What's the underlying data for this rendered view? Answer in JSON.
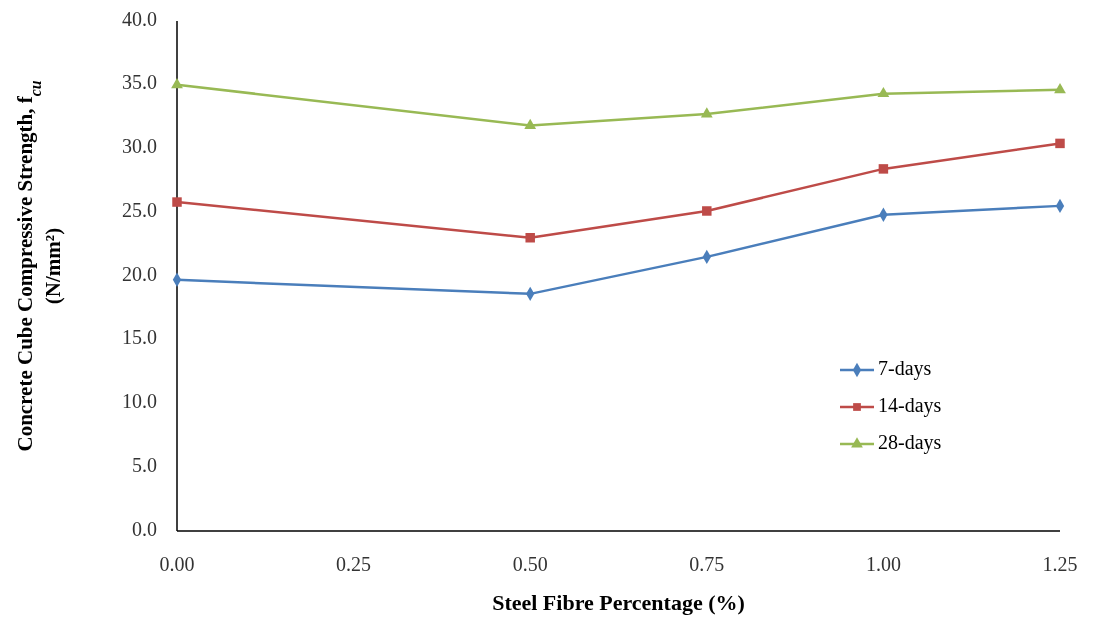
{
  "chart_data": {
    "type": "line",
    "xlabel": "Steel Fibre Percentage (%)",
    "ylabel": "Concrete Cube Compressive Strength, f$_{cu}$\n(N/mm²)",
    "x": [
      0,
      0.5,
      0.75,
      1.0,
      1.25
    ],
    "xlim": [
      0,
      1.25
    ],
    "xticks": [
      {
        "value": 0,
        "label": "0.00"
      },
      {
        "value": 0.25,
        "label": "0.25"
      },
      {
        "value": 0.5,
        "label": "0.50"
      },
      {
        "value": 0.75,
        "label": "0.75"
      },
      {
        "value": 1,
        "label": "1.00"
      },
      {
        "value": 1.25,
        "label": "1.25"
      }
    ],
    "ylim": [
      0,
      40
    ],
    "yticks": [
      {
        "value": 0,
        "label": "0.0"
      },
      {
        "value": 5,
        "label": "5.0"
      },
      {
        "value": 10,
        "label": "10.0"
      },
      {
        "value": 15,
        "label": "15.0"
      },
      {
        "value": 20,
        "label": "20.0"
      },
      {
        "value": 25,
        "label": "25.0"
      },
      {
        "value": 30,
        "label": "30.0"
      },
      {
        "value": 35,
        "label": "35.0"
      },
      {
        "value": 40,
        "label": "40.0"
      }
    ],
    "series": [
      {
        "name": "7-days",
        "color": "#4a7ebb",
        "marker": "diamond",
        "values": [
          19.7,
          18.6,
          21.5,
          24.8,
          25.5
        ]
      },
      {
        "name": "14-days",
        "color": "#be4b48",
        "marker": "square",
        "values": [
          25.8,
          23.0,
          25.1,
          28.4,
          30.4
        ]
      },
      {
        "name": "28-days",
        "color": "#98b954",
        "marker": "triangle",
        "values": [
          35.0,
          31.8,
          32.7,
          34.3,
          34.6
        ]
      }
    ],
    "grid": false,
    "legend": "bottom right"
  }
}
